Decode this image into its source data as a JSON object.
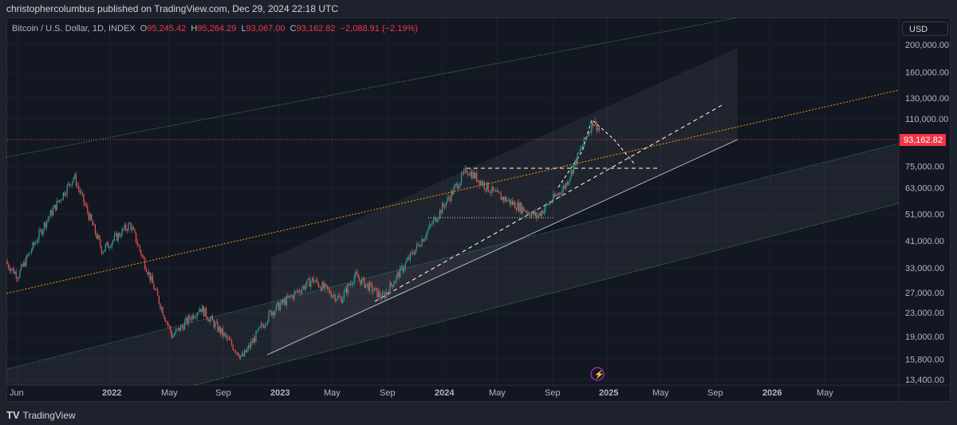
{
  "header": {
    "published": "christophercolumbus published on TradingView.com, Dec 29, 2024 22:18 UTC"
  },
  "legend": {
    "symbol": "Bitcoin / U.S. Dollar, 1D, INDEX",
    "o_label": "O",
    "o": "95,245.42",
    "h_label": "H",
    "h": "95,264.29",
    "l_label": "L",
    "l": "93,067.00",
    "c_label": "C",
    "c": "93,162.82",
    "change": "−2,088.91 (−2.19%)"
  },
  "currency": "USD",
  "last_price": "93,162.82",
  "price_axis": [
    "200,000.00",
    "160,000.00",
    "130,000.00",
    "110,000.00",
    "75,000.00",
    "63,000.00",
    "51,000.00",
    "41,000.00",
    "33,000.00",
    "27,000.00",
    "23,000.00",
    "19,000.00",
    "15,800.00",
    "13,400.00"
  ],
  "time_axis": [
    "Jun",
    "2022",
    "May",
    "Sep",
    "2023",
    "May",
    "Sep",
    "2024",
    "May",
    "Sep",
    "2025",
    "May",
    "Sep",
    "2026",
    "May"
  ],
  "brand": "TradingView",
  "colors": {
    "up": "#26a69a",
    "down": "#ef5350",
    "last": "#f23645"
  },
  "chart_data": {
    "type": "candlestick",
    "scale": "log",
    "title": "Bitcoin / U.S. Dollar, 1D, INDEX",
    "key_prices": [
      [
        "2021-06",
        35000
      ],
      [
        "2021-07",
        31000
      ],
      [
        "2021-09",
        48000
      ],
      [
        "2021-11",
        69000
      ],
      [
        "2022-01",
        38000
      ],
      [
        "2022-03",
        47000
      ],
      [
        "2022-06",
        19000
      ],
      [
        "2022-08",
        24000
      ],
      [
        "2022-11",
        16000
      ],
      [
        "2023-01",
        23000
      ],
      [
        "2023-04",
        30000
      ],
      [
        "2023-06",
        25500
      ],
      [
        "2023-07",
        31000
      ],
      [
        "2023-09",
        26000
      ],
      [
        "2023-12",
        43000
      ],
      [
        "2024-03",
        73000
      ],
      [
        "2024-05",
        60000
      ],
      [
        "2024-08",
        50000
      ],
      [
        "2024-10",
        64000
      ],
      [
        "2024-12",
        108000
      ],
      [
        "2024-12-29",
        93162.82
      ]
    ]
  }
}
